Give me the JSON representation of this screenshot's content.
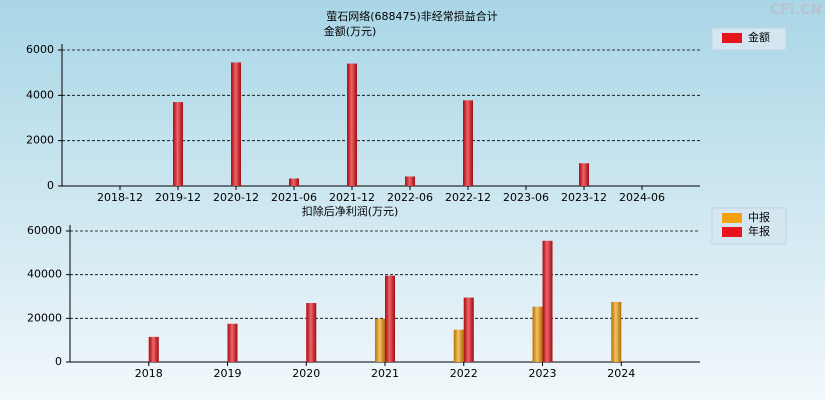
{
  "watermark": "CFi.CN",
  "chart_data": [
    {
      "type": "bar",
      "title": "萤石网络(688475)非经常损益合计",
      "subtitle": "金额(万元)",
      "categories": [
        "2018-12",
        "2019-12",
        "2020-12",
        "2021-06",
        "2021-12",
        "2022-06",
        "2022-12",
        "2023-06",
        "2023-12",
        "2024-06"
      ],
      "series": [
        {
          "name": "金额",
          "color": "#e8141c",
          "values": [
            null,
            3700,
            5450,
            330,
            5400,
            420,
            3780,
            null,
            1000,
            null
          ]
        }
      ],
      "ylim": [
        0,
        6000
      ],
      "yticks": [
        0,
        2000,
        4000,
        6000
      ],
      "grid": true,
      "legend": "upper right"
    },
    {
      "type": "bar",
      "title": "扣除后净利润(万元)",
      "categories": [
        "2018",
        "2019",
        "2020",
        "2021",
        "2022",
        "2023",
        "2024"
      ],
      "series": [
        {
          "name": "中报",
          "color": "#f5a10f",
          "values": [
            null,
            null,
            null,
            19800,
            14800,
            25300,
            27500
          ]
        },
        {
          "name": "年报",
          "color": "#e8141c",
          "values": [
            11500,
            17500,
            27000,
            39500,
            29500,
            55500,
            null
          ]
        }
      ],
      "ylim": [
        0,
        60000
      ],
      "yticks": [
        0,
        20000,
        40000,
        60000
      ],
      "grid": true,
      "legend": "upper right"
    }
  ]
}
